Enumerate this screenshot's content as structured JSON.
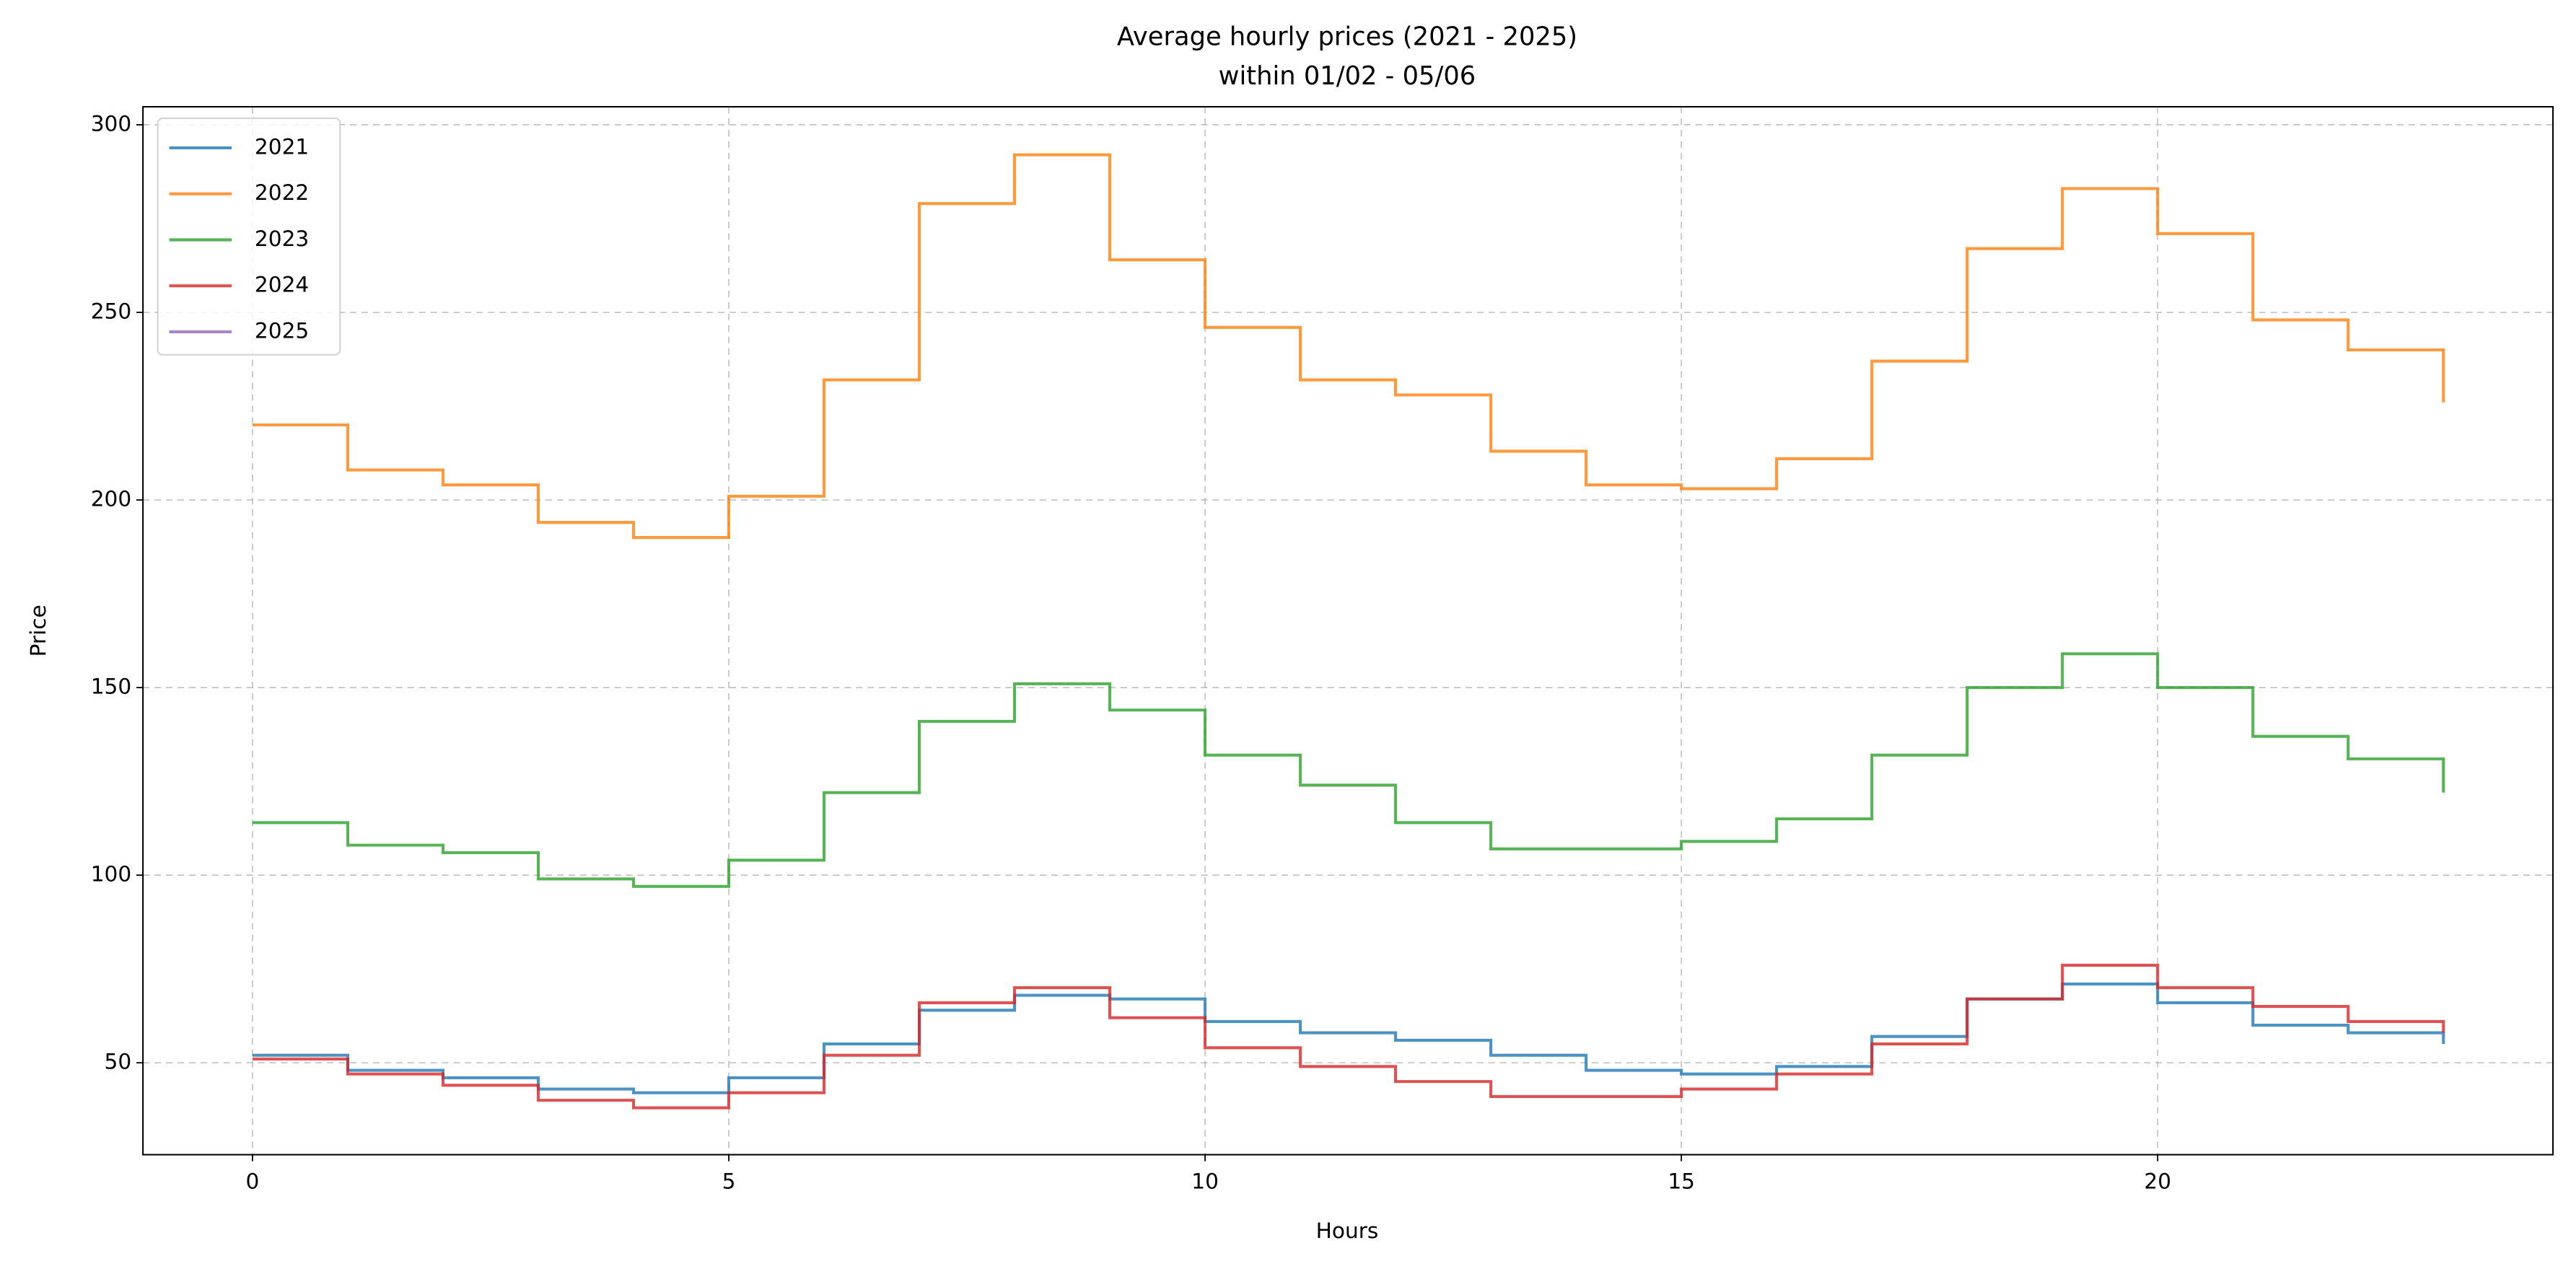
{
  "chart_data": {
    "type": "step",
    "title": "Average hourly prices (2021 - 2025)",
    "subtitle": "within 01/02 - 05/06",
    "x_label": "Hours",
    "y_label": "Price",
    "x": [
      0,
      1,
      2,
      3,
      4,
      5,
      6,
      7,
      8,
      9,
      10,
      11,
      12,
      13,
      14,
      15,
      16,
      17,
      18,
      19,
      20,
      21,
      22,
      23
    ],
    "series": [
      {
        "name": "2021",
        "color": "#1f77b4",
        "values": [
          52,
          48,
          46,
          43,
          42,
          46,
          55,
          64,
          68,
          67,
          61,
          58,
          56,
          52,
          48,
          47,
          49,
          57,
          67,
          71,
          66,
          60,
          58,
          55
        ]
      },
      {
        "name": "2022",
        "color": "#ff7f0e",
        "values": [
          220,
          208,
          204,
          194,
          190,
          201,
          232,
          279,
          292,
          264,
          246,
          232,
          228,
          213,
          204,
          203,
          211,
          237,
          267,
          283,
          271,
          248,
          240,
          226
        ]
      },
      {
        "name": "2023",
        "color": "#2ca02c",
        "values": [
          114,
          108,
          106,
          99,
          97,
          104,
          122,
          141,
          151,
          144,
          132,
          124,
          114,
          107,
          107,
          109,
          115,
          132,
          150,
          159,
          150,
          137,
          131,
          122
        ]
      },
      {
        "name": "2024",
        "color": "#d62728",
        "values": [
          51,
          47,
          44,
          40,
          38,
          42,
          52,
          66,
          70,
          62,
          54,
          49,
          45,
          41,
          41,
          43,
          47,
          55,
          67,
          76,
          70,
          65,
          61,
          58
        ]
      },
      {
        "name": "2025",
        "color": "#9467bd",
        "values": [
          null,
          null,
          null,
          null,
          null,
          null,
          null,
          null,
          null,
          null,
          null,
          null,
          null,
          null,
          null,
          null,
          null,
          null,
          null,
          null,
          null,
          null,
          null,
          null
        ]
      }
    ],
    "xlim": [
      -1.15,
      24.15
    ],
    "ylim": [
      25.5,
      304.8
    ],
    "xticks": [
      0,
      5,
      10,
      15,
      20
    ],
    "yticks": [
      50,
      100,
      150,
      200,
      250,
      300
    ],
    "grid": true,
    "legend": "upper left"
  }
}
